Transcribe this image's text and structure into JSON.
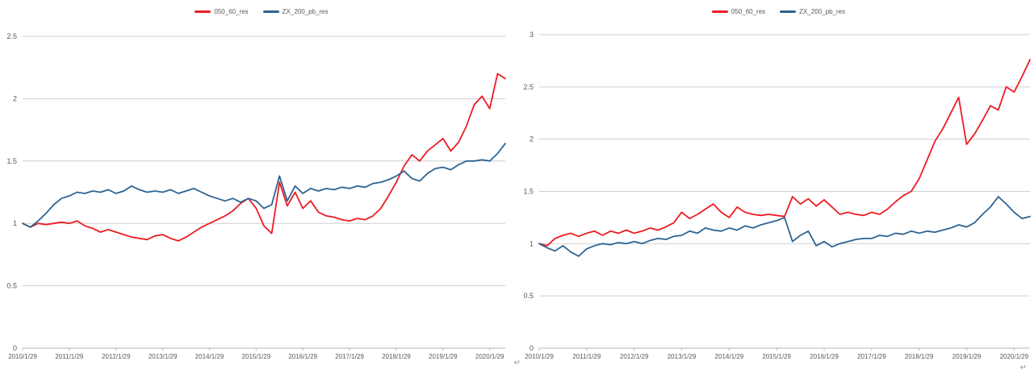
{
  "page": {
    "background": "#ffffff"
  },
  "chart_data": [
    {
      "name": "left-chart",
      "type": "line",
      "title": "",
      "xlabel": "",
      "ylabel": "",
      "grid": true,
      "legend_position": "top-center",
      "ylim": [
        0,
        2.5
      ],
      "yticks": [
        0,
        0.5,
        1,
        1.5,
        2,
        2.5
      ],
      "x_labels": [
        "2010/1/29",
        "2011/1/29",
        "2012/1/29",
        "2013/1/29",
        "2014/1/29",
        "2015/1/29",
        "2016/1/29",
        "2017/1/29",
        "2018/1/29",
        "2019/1/29",
        "2020/1/29"
      ],
      "x_step_months": 2,
      "series": [
        {
          "name": "050_60_res",
          "color": "#ec1c24",
          "values": [
            1.0,
            0.97,
            1.0,
            0.99,
            1.0,
            1.01,
            1.0,
            1.02,
            0.98,
            0.96,
            0.93,
            0.95,
            0.93,
            0.91,
            0.89,
            0.88,
            0.87,
            0.9,
            0.91,
            0.88,
            0.86,
            0.89,
            0.93,
            0.97,
            1.0,
            1.03,
            1.06,
            1.1,
            1.16,
            1.2,
            1.12,
            0.98,
            0.92,
            1.33,
            1.14,
            1.25,
            1.12,
            1.18,
            1.09,
            1.06,
            1.05,
            1.03,
            1.02,
            1.04,
            1.03,
            1.06,
            1.12,
            1.22,
            1.33,
            1.46,
            1.55,
            1.5,
            1.58,
            1.63,
            1.68,
            1.58,
            1.65,
            1.78,
            1.95,
            2.02,
            1.92,
            2.2,
            2.16
          ]
        },
        {
          "name": "ZX_200_pb_res",
          "color": "#2e6493",
          "values": [
            1.0,
            0.97,
            1.02,
            1.08,
            1.15,
            1.2,
            1.22,
            1.25,
            1.24,
            1.26,
            1.25,
            1.27,
            1.24,
            1.26,
            1.3,
            1.27,
            1.25,
            1.26,
            1.25,
            1.27,
            1.24,
            1.26,
            1.28,
            1.25,
            1.22,
            1.2,
            1.18,
            1.2,
            1.17,
            1.2,
            1.18,
            1.12,
            1.15,
            1.38,
            1.18,
            1.3,
            1.24,
            1.28,
            1.26,
            1.28,
            1.27,
            1.29,
            1.28,
            1.3,
            1.29,
            1.32,
            1.33,
            1.35,
            1.38,
            1.42,
            1.36,
            1.34,
            1.4,
            1.44,
            1.45,
            1.43,
            1.47,
            1.5,
            1.5,
            1.51,
            1.5,
            1.56,
            1.64
          ]
        }
      ],
      "end_mark": "↵"
    },
    {
      "name": "right-chart",
      "type": "line",
      "title": "",
      "xlabel": "",
      "ylabel": "",
      "grid": true,
      "legend_position": "top-center",
      "ylim": [
        0,
        3
      ],
      "yticks": [
        0,
        0.5,
        1,
        1.5,
        2,
        2.5,
        3
      ],
      "x_labels": [
        "2010/1/29",
        "2011/1/29",
        "2012/1/29",
        "2013/1/29",
        "2014/1/29",
        "2015/1/29",
        "2016/1/29",
        "2017/1/29",
        "2018/1/29",
        "2019/1/29",
        "2020/1/29"
      ],
      "x_step_months": 2,
      "series": [
        {
          "name": "050_60_res",
          "color": "#ec1c24",
          "values": [
            1.0,
            0.98,
            1.05,
            1.08,
            1.1,
            1.07,
            1.1,
            1.12,
            1.08,
            1.12,
            1.1,
            1.13,
            1.1,
            1.12,
            1.15,
            1.13,
            1.16,
            1.2,
            1.3,
            1.24,
            1.28,
            1.33,
            1.38,
            1.3,
            1.25,
            1.35,
            1.3,
            1.28,
            1.27,
            1.28,
            1.27,
            1.26,
            1.45,
            1.38,
            1.43,
            1.36,
            1.42,
            1.35,
            1.28,
            1.3,
            1.28,
            1.27,
            1.3,
            1.28,
            1.33,
            1.4,
            1.46,
            1.5,
            1.62,
            1.8,
            1.98,
            2.1,
            2.25,
            2.4,
            1.95,
            2.05,
            2.18,
            2.32,
            2.28,
            2.5,
            2.45,
            2.6,
            2.76
          ]
        },
        {
          "name": "ZX_200_pb_res",
          "color": "#2e6493",
          "values": [
            1.0,
            0.96,
            0.93,
            0.98,
            0.92,
            0.88,
            0.95,
            0.98,
            1.0,
            0.99,
            1.01,
            1.0,
            1.02,
            1.0,
            1.03,
            1.05,
            1.04,
            1.07,
            1.08,
            1.12,
            1.1,
            1.15,
            1.13,
            1.12,
            1.15,
            1.13,
            1.17,
            1.15,
            1.18,
            1.2,
            1.22,
            1.25,
            1.02,
            1.08,
            1.12,
            0.98,
            1.02,
            0.97,
            1.0,
            1.02,
            1.04,
            1.05,
            1.05,
            1.08,
            1.07,
            1.1,
            1.09,
            1.12,
            1.1,
            1.12,
            1.11,
            1.13,
            1.15,
            1.18,
            1.16,
            1.2,
            1.28,
            1.35,
            1.45,
            1.38,
            1.3,
            1.24,
            1.26
          ]
        }
      ],
      "end_mark": "↵"
    }
  ]
}
